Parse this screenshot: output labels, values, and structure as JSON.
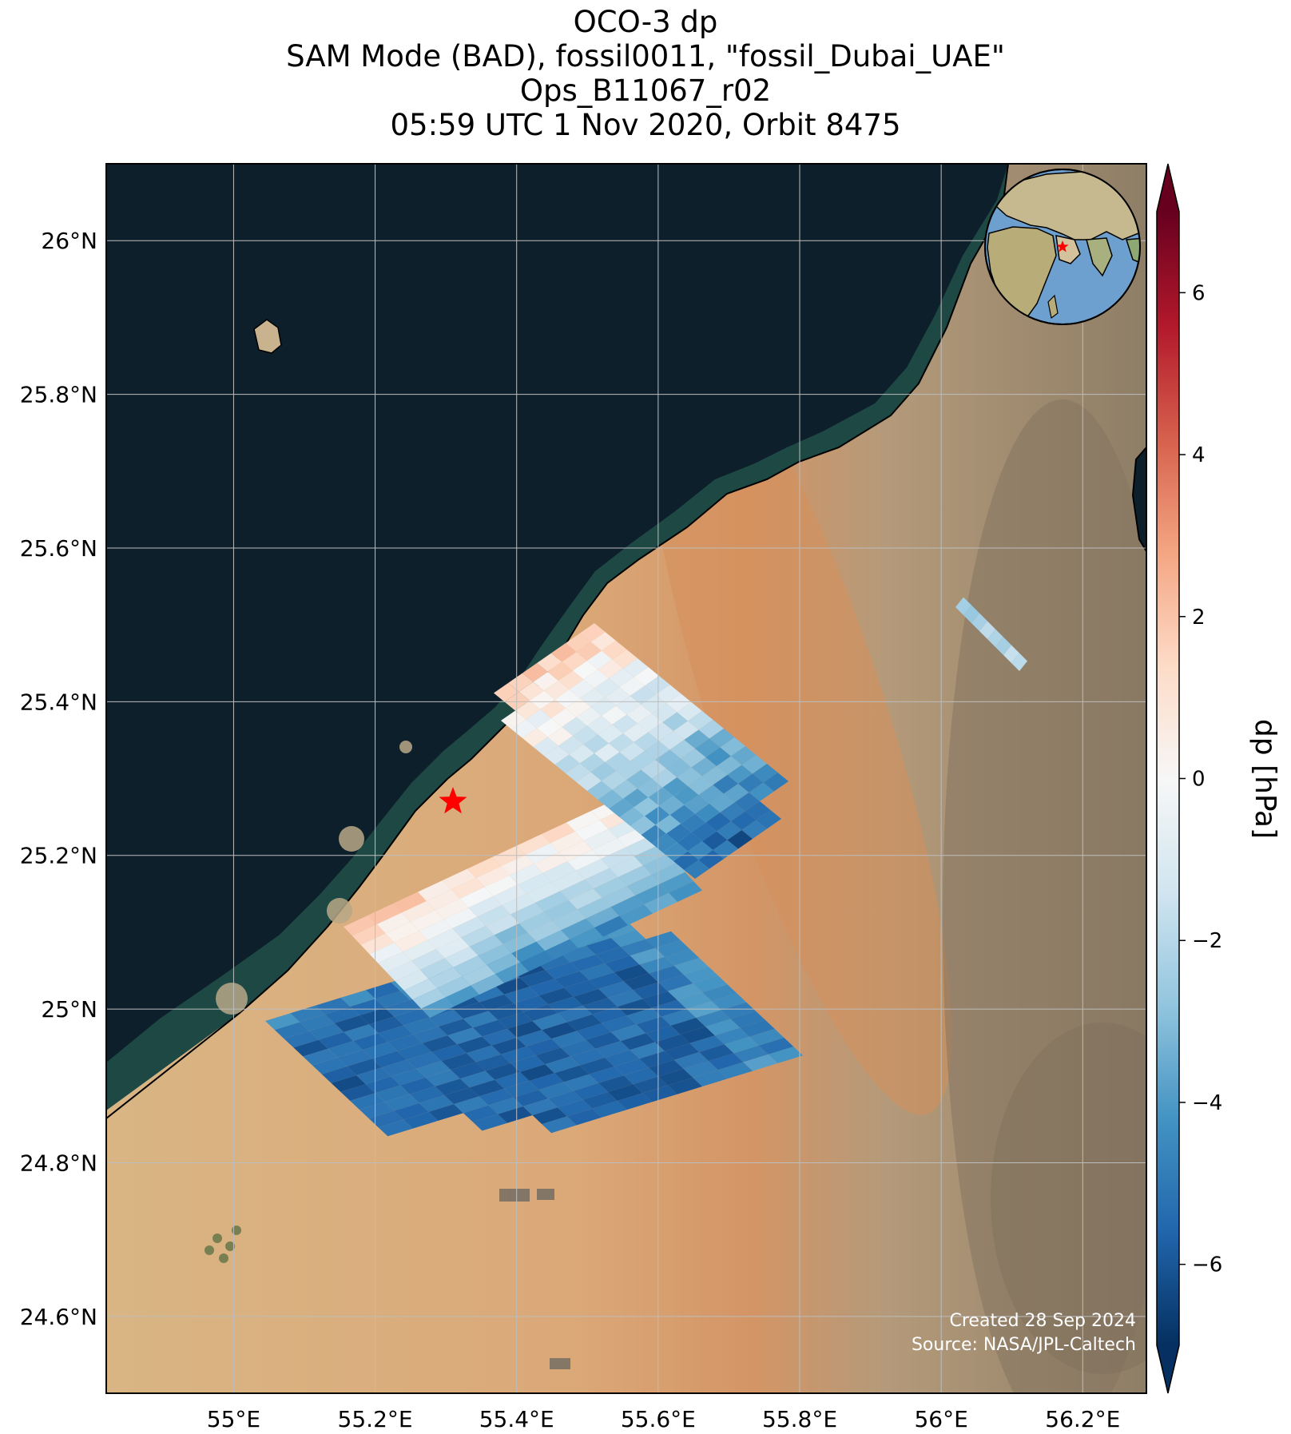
{
  "title": {
    "line1": "OCO-3 dp",
    "line2": "SAM Mode (BAD), fossil0011, \"fossil_Dubai_UAE\"",
    "line3": "Ops_B11067_r02",
    "line4": "05:59 UTC 1 Nov 2020, Orbit 8475"
  },
  "map": {
    "extent": {
      "lon_min": 54.82,
      "lon_max": 56.29,
      "lat_min": 24.5,
      "lat_max": 26.1
    },
    "lon_ticks": [
      {
        "value": 55.0,
        "label": "55°E"
      },
      {
        "value": 55.2,
        "label": "55.2°E"
      },
      {
        "value": 55.4,
        "label": "55.4°E"
      },
      {
        "value": 55.6,
        "label": "55.6°E"
      },
      {
        "value": 55.8,
        "label": "55.8°E"
      },
      {
        "value": 56.0,
        "label": "56°E"
      },
      {
        "value": 56.2,
        "label": "56.2°E"
      }
    ],
    "lat_ticks": [
      {
        "value": 26.0,
        "label": "26°N"
      },
      {
        "value": 25.8,
        "label": "25.8°N"
      },
      {
        "value": 25.6,
        "label": "25.6°N"
      },
      {
        "value": 25.4,
        "label": "25.4°N"
      },
      {
        "value": 25.2,
        "label": "25.2°N"
      },
      {
        "value": 25.0,
        "label": "25°N"
      },
      {
        "value": 24.8,
        "label": "24.8°N"
      },
      {
        "value": 24.6,
        "label": "24.6°N"
      }
    ],
    "target": {
      "lon": 55.31,
      "lat": 25.27,
      "marker": "red-star"
    },
    "colors": {
      "sea": "#0e1f2c",
      "coast": "#1e4a44",
      "sand": "#dcaf7d",
      "dune": "#d7935e",
      "mountain": "#8e7f66",
      "target": "#ff0000"
    },
    "inset_globe": {
      "center_lon": 55.3,
      "center_lat": 25.2,
      "marker": "red-star"
    }
  },
  "colorbar": {
    "label": "dp [hPa]",
    "vmin": -7.0,
    "vmax": 7.0,
    "extend": "both",
    "colormap": "RdBu_r",
    "ticks": [
      {
        "value": 6,
        "label": "6"
      },
      {
        "value": 4,
        "label": "4"
      },
      {
        "value": 2,
        "label": "2"
      },
      {
        "value": 0,
        "label": "0"
      },
      {
        "value": -2,
        "label": "−2"
      },
      {
        "value": -4,
        "label": "−4"
      },
      {
        "value": -6,
        "label": "−6"
      }
    ]
  },
  "credits": {
    "created": "Created 28 Sep 2024",
    "source": "Source: NASA/JPL-Caltech"
  }
}
